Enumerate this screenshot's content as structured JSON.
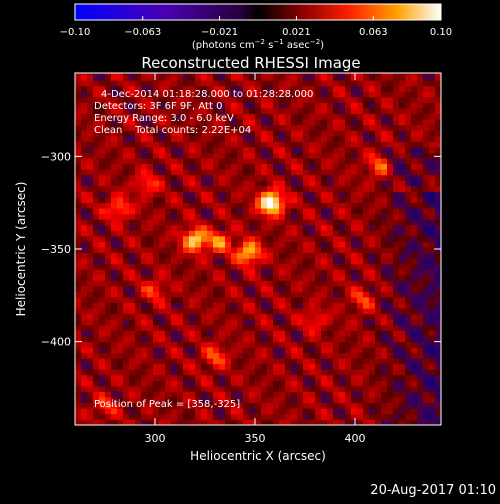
{
  "chart_data": {
    "type": "heatmap",
    "title": "Reconstructed RHESSI Image",
    "xlabel": "Heliocentric X (arcsec)",
    "ylabel": "Heliocentric Y (arcsec)",
    "xlim": [
      260,
      443
    ],
    "ylim": [
      -445,
      -255
    ],
    "xticks": [
      {
        "value": 300,
        "label": "300"
      },
      {
        "value": 350,
        "label": "350"
      },
      {
        "value": 400,
        "label": "400"
      }
    ],
    "yticks": [
      {
        "value": -300,
        "label": "−300"
      },
      {
        "value": -350,
        "label": "−350"
      },
      {
        "value": -400,
        "label": "−400"
      }
    ],
    "colorbar": {
      "range": [
        -0.1,
        0.1
      ],
      "ticks": [
        {
          "value": -0.1,
          "label": "−0.10"
        },
        {
          "value": -0.063,
          "label": "−0.063"
        },
        {
          "value": -0.021,
          "label": "−0.021"
        },
        {
          "value": 0.021,
          "label": "0.021"
        },
        {
          "value": 0.063,
          "label": "0.063"
        },
        {
          "value": 0.1,
          "label": "0.10"
        }
      ],
      "unit_text": "(photons cm",
      "unit_sup1": "−2",
      "unit_mid1": " s",
      "unit_sup2": "−1",
      "unit_mid2": " asec",
      "unit_sup3": "−2",
      "unit_end": ")"
    },
    "sources": [
      {
        "x": 358,
        "y": -325,
        "amplitude": 0.1
      },
      {
        "x": 320,
        "y": -345,
        "amplitude": 0.072
      },
      {
        "x": 347,
        "y": -352,
        "amplitude": 0.066
      },
      {
        "x": 332,
        "y": -346,
        "amplitude": 0.045
      },
      {
        "x": 282,
        "y": -328,
        "amplitude": 0.04
      },
      {
        "x": 330,
        "y": -408,
        "amplitude": 0.035
      },
      {
        "x": 412,
        "y": -305,
        "amplitude": 0.035
      },
      {
        "x": 296,
        "y": -315,
        "amplitude": 0.03
      },
      {
        "x": 404,
        "y": -377,
        "amplitude": 0.03
      },
      {
        "x": 300,
        "y": -372,
        "amplitude": 0.028
      },
      {
        "x": 380,
        "y": -388,
        "amplitude": 0.025
      },
      {
        "x": 275,
        "y": -435,
        "amplitude": 0.025
      }
    ],
    "annotations": {
      "line1": "4-Dec-2014 01:18:28.000 to 01:28:28.000",
      "line2": "Detectors: 3F 6F 9F, Att 0",
      "line3": "Energy Range: 3.0 - 6.0 keV",
      "line4": "Clean    Total counts: 2.22E+04",
      "peak": "Position of Peak = [358,-325]"
    }
  },
  "footer": {
    "date": "20-Aug-2017 01:10"
  }
}
